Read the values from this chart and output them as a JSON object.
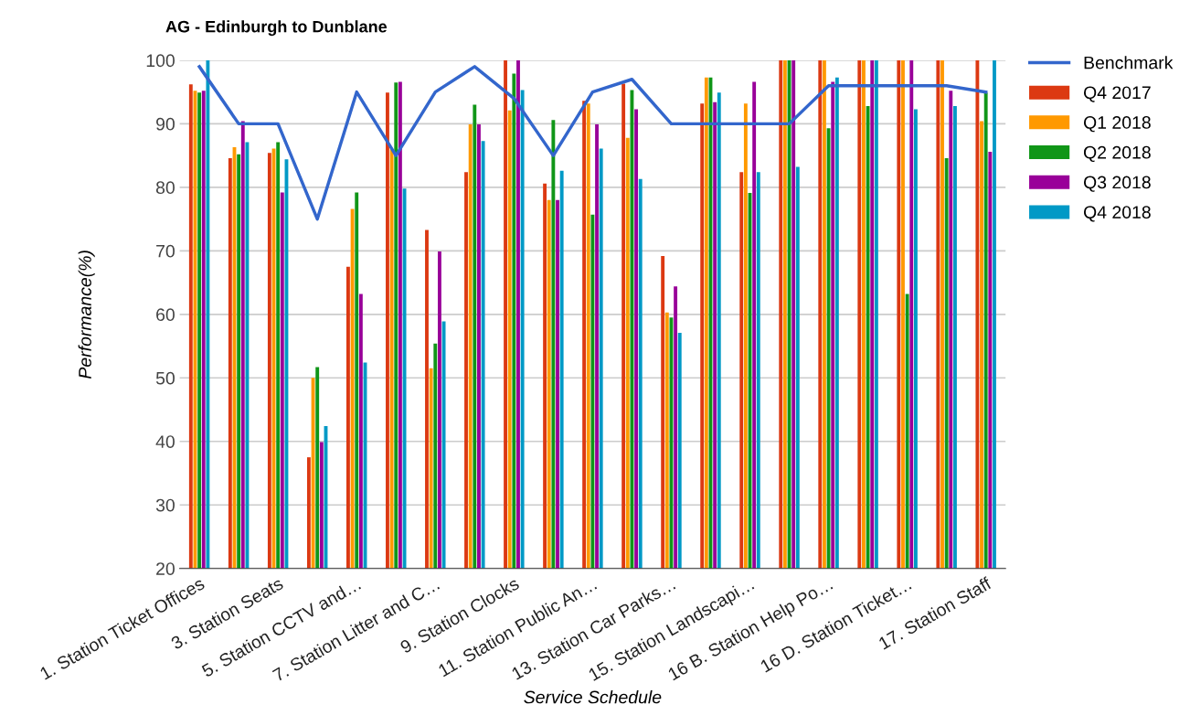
{
  "chart_data": {
    "type": "bar",
    "title": "AG - Edinburgh to Dunblane",
    "xlabel": "Service Schedule",
    "ylabel": "Performance(%)",
    "categories": [
      "1. Station Ticket Offices",
      null,
      "3. Station Seats",
      null,
      "5. Station CCTV and…",
      null,
      "7. Station Litter and C…",
      null,
      "9. Station Clocks",
      null,
      "11. Station Public An…",
      null,
      "13. Station Car Parks…",
      null,
      "15. Station Landscapi…",
      null,
      "16 B. Station Help Po…",
      null,
      "16 D. Station Ticket…",
      null,
      "17. Station Staff"
    ],
    "series": [
      {
        "name": "Benchmark",
        "type": "line",
        "color": "#3366cc",
        "values": [
          99,
          90,
          90,
          75,
          95,
          85,
          95,
          99,
          94,
          85,
          95,
          97,
          90,
          90,
          90,
          90,
          96,
          96,
          96,
          96,
          95
        ]
      },
      {
        "name": "Q4 2017",
        "color": "#dc3912",
        "values": [
          96.2,
          84.6,
          85.4,
          37.5,
          67.5,
          94.9,
          73.3,
          82.4,
          100,
          80.6,
          93.6,
          96.3,
          69.2,
          93.2,
          82.4,
          100,
          100,
          100,
          100,
          100,
          100
        ]
      },
      {
        "name": "Q1 2018",
        "color": "#ff9900",
        "values": [
          95.2,
          86.3,
          86.1,
          50.0,
          76.6,
          86,
          51.5,
          89.9,
          92.1,
          78.0,
          93.2,
          87.8,
          60.3,
          97.3,
          93.2,
          100,
          100,
          100,
          100,
          100,
          90.4
        ]
      },
      {
        "name": "Q2 2018",
        "color": "#109618",
        "values": [
          94.9,
          85.2,
          87.1,
          51.7,
          79.2,
          96.5,
          55.4,
          93.0,
          97.9,
          90.6,
          75.7,
          95.3,
          59.5,
          97.3,
          79.1,
          100,
          89.3,
          92.8,
          63.2,
          84.6,
          94.9
        ]
      },
      {
        "name": "Q3 2018",
        "color": "#990099",
        "values": [
          95.2,
          90.4,
          79.2,
          39.9,
          63.2,
          96.6,
          69.9,
          89.9,
          100,
          78.0,
          89.9,
          92.3,
          64.4,
          93.4,
          96.6,
          100,
          96.6,
          100,
          100,
          95.2,
          85.6
        ]
      },
      {
        "name": "Q4 2018",
        "color": "#0099c6",
        "values": [
          100,
          87.1,
          84.4,
          42.4,
          52.4,
          79.8,
          58.9,
          87.3,
          95.3,
          82.6,
          86.1,
          81.3,
          57.1,
          94.9,
          82.4,
          83.2,
          97.3,
          100,
          92.3,
          92.8,
          100
        ]
      }
    ],
    "ylim": [
      20,
      100
    ],
    "yticks": [
      20,
      30,
      40,
      50,
      60,
      70,
      80,
      90,
      100
    ],
    "grid": "y",
    "legend": "top right"
  }
}
